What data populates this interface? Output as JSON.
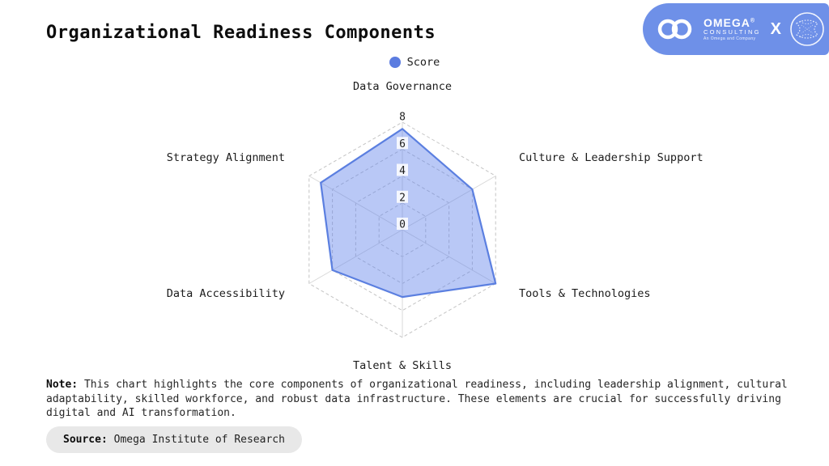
{
  "header": {
    "title": "Organizational Readiness Components",
    "brand": {
      "name": "OMEGA",
      "registered_mark": "®",
      "subtitle": "CONSULTING",
      "tagline": "An Omega and Company",
      "separator": "X",
      "banner_color": "#6e90e8"
    }
  },
  "chart_data": {
    "type": "radar",
    "title": "Organizational Readiness Components",
    "categories": [
      "Data Governance",
      "Culture & Leadership Support",
      "Tools & Technologies",
      "Talent & Skills",
      "Data Accessibility",
      "Strategy Alignment"
    ],
    "series": [
      {
        "name": "Score",
        "values": [
          7.5,
          6,
          8,
          5,
          6,
          7
        ]
      }
    ],
    "scale": {
      "min": 0,
      "max": 8,
      "ticks": [
        0,
        2,
        4,
        6,
        8
      ]
    },
    "legend_position": "top",
    "grid": "dashed",
    "colors": {
      "fill": "rgba(99,133,234,0.45)",
      "stroke": "#5b7fe0",
      "legend_marker": "#5b7ce0",
      "grid_line": "#c4c4c4",
      "axis_line": "#d8d8d8",
      "tick_text": "#1f1f1f"
    }
  },
  "legend": {
    "score_label": "Score"
  },
  "note": {
    "label": "Note:",
    "text": " This chart highlights the core components of organizational readiness, including leadership alignment, cultural adaptability, skilled workforce, and robust data infrastructure. These elements are crucial for successfully driving digital and AI transformation."
  },
  "source": {
    "label": "Source:",
    "text": " Omega Institute of Research"
  }
}
